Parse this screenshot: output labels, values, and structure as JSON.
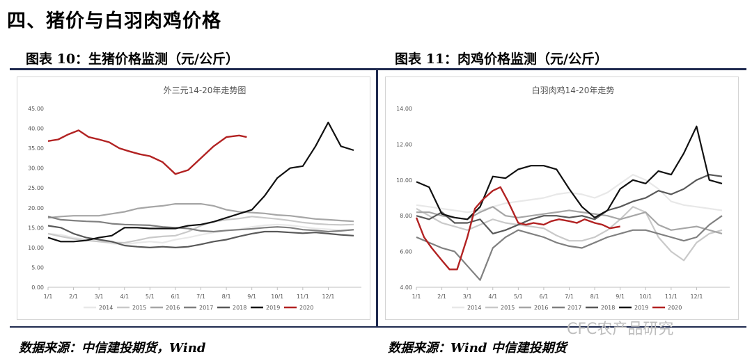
{
  "section_title": "四、猪价与白羽肉鸡价格",
  "figures": {
    "left": {
      "title": "图表 10：生猪价格监测（元/公斤）",
      "source": "数据来源：中信建投期货，Wind"
    },
    "right": {
      "title": "图表 11：肉鸡价格监测（元/公斤）",
      "source": "数据来源：Wind 中信建投期货"
    }
  },
  "watermark": "CFC农产品研究",
  "colors": {
    "y2014": "#e8e8e8",
    "y2015": "#c9c9c9",
    "y2016": "#a6a6a6",
    "y2017": "#808080",
    "y2018": "#595959",
    "y2019": "#111111",
    "y2020": "#b22222"
  },
  "chart_data": [
    {
      "type": "line",
      "title": "外三元14-20年走势图",
      "xlabel": "",
      "ylabel": "",
      "ylim": [
        0,
        45
      ],
      "y_ticks": [
        "0.00",
        "5.00",
        "10.00",
        "15.00",
        "20.00",
        "25.00",
        "30.00",
        "35.00",
        "40.00",
        "45.00"
      ],
      "x_ticks": [
        "1/1",
        "2/1",
        "3/1",
        "4/1",
        "5/1",
        "6/1",
        "7/1",
        "8/1",
        "9/1",
        "10/1",
        "11/1",
        "12/1"
      ],
      "x_domain": [
        0,
        12.3
      ],
      "series": [
        {
          "name": "2014",
          "x": [
            0,
            0.5,
            1,
            1.5,
            2,
            2.5,
            3,
            3.5,
            4,
            4.5,
            5,
            5.5,
            6,
            6.5,
            7,
            7.5,
            8,
            8.5,
            9,
            9.5,
            10,
            10.5,
            11,
            11.5,
            12
          ],
          "y": [
            13.5,
            13.2,
            12.5,
            12.0,
            11.5,
            11.0,
            10.8,
            11.2,
            11.5,
            11.2,
            12.0,
            12.5,
            13.2,
            13.8,
            14.2,
            14.6,
            15.2,
            15.6,
            15.8,
            15.6,
            15.2,
            14.8,
            14.6,
            14.4,
            14.4
          ]
        },
        {
          "name": "2015",
          "x": [
            0,
            0.5,
            1,
            1.5,
            2,
            2.5,
            3,
            3.5,
            4,
            4.5,
            5,
            5.5,
            6,
            6.5,
            7,
            7.5,
            8,
            8.5,
            9,
            9.5,
            10,
            10.5,
            11,
            11.5,
            12
          ],
          "y": [
            13.5,
            12.8,
            12.2,
            11.8,
            11.5,
            11.3,
            11.2,
            11.8,
            12.5,
            12.8,
            13.0,
            14.0,
            15.5,
            16.5,
            17.0,
            17.3,
            17.8,
            17.5,
            17.2,
            16.8,
            16.3,
            16.0,
            15.8,
            15.7,
            15.8
          ]
        },
        {
          "name": "2016",
          "x": [
            0,
            0.5,
            1,
            1.5,
            2,
            2.5,
            3,
            3.5,
            4,
            4.5,
            5,
            5.5,
            6,
            6.5,
            7,
            7.5,
            8,
            8.5,
            9,
            9.5,
            10,
            10.5,
            11,
            11.5,
            12
          ],
          "y": [
            17.5,
            17.8,
            18.0,
            18.0,
            18.0,
            18.5,
            19.0,
            19.8,
            20.2,
            20.5,
            21.0,
            21.0,
            21.0,
            20.5,
            19.5,
            19.0,
            18.8,
            18.6,
            18.2,
            18.0,
            17.6,
            17.2,
            17.0,
            16.8,
            16.6
          ]
        },
        {
          "name": "2017",
          "x": [
            0,
            0.5,
            1,
            1.5,
            2,
            2.5,
            3,
            3.5,
            4,
            4.5,
            5,
            5.5,
            6,
            6.5,
            7,
            7.5,
            8,
            8.5,
            9,
            9.5,
            10,
            10.5,
            11,
            11.5,
            12
          ],
          "y": [
            17.8,
            17.0,
            16.8,
            16.6,
            16.5,
            16.0,
            15.8,
            15.7,
            15.6,
            15.2,
            15.0,
            14.8,
            14.2,
            14.0,
            14.3,
            14.5,
            14.7,
            15.0,
            15.2,
            15.0,
            14.5,
            14.3,
            14.0,
            14.2,
            14.5
          ]
        },
        {
          "name": "2018",
          "x": [
            0,
            0.5,
            1,
            1.5,
            2,
            2.5,
            3,
            3.5,
            4,
            4.5,
            5,
            5.5,
            6,
            6.5,
            7,
            7.5,
            8,
            8.5,
            9,
            9.5,
            10,
            10.5,
            11,
            11.5,
            12
          ],
          "y": [
            15.5,
            15.0,
            13.5,
            12.5,
            12.0,
            11.5,
            10.5,
            10.2,
            10.0,
            10.2,
            10.0,
            10.2,
            10.8,
            11.5,
            12.0,
            12.8,
            13.5,
            14.0,
            14.0,
            13.8,
            13.6,
            13.8,
            13.5,
            13.2,
            13.0
          ]
        },
        {
          "name": "2019",
          "x": [
            0,
            0.5,
            1,
            1.5,
            2,
            2.5,
            3,
            3.5,
            4,
            4.5,
            5,
            5.5,
            6,
            6.5,
            7,
            7.5,
            8,
            8.5,
            9,
            9.5,
            10,
            10.5,
            11,
            11.5,
            12
          ],
          "y": [
            12.5,
            11.5,
            11.5,
            11.8,
            12.5,
            13.0,
            15.0,
            15.0,
            14.8,
            14.8,
            14.8,
            15.5,
            15.8,
            16.5,
            17.5,
            18.5,
            19.5,
            23.0,
            27.5,
            30.0,
            30.5,
            35.5,
            41.5,
            35.5,
            34.5
          ]
        },
        {
          "name": "2020",
          "x": [
            0,
            0.4,
            0.8,
            1.2,
            1.6,
            2.0,
            2.4,
            2.8,
            3.2,
            3.6,
            4.0,
            4.5,
            5.0,
            5.5,
            6.0,
            6.5,
            7.0,
            7.5,
            7.8
          ],
          "y": [
            36.8,
            37.2,
            38.5,
            39.5,
            37.8,
            37.2,
            36.5,
            35.0,
            34.2,
            33.5,
            33.0,
            31.5,
            28.5,
            29.5,
            32.5,
            35.5,
            37.8,
            38.2,
            37.8
          ]
        }
      ]
    },
    {
      "type": "line",
      "title": "白羽肉鸡14-20年走势",
      "xlabel": "",
      "ylabel": "",
      "ylim": [
        4,
        14
      ],
      "y_ticks": [
        "4.00",
        "6.00",
        "8.00",
        "10.00",
        "12.00",
        "14.00"
      ],
      "x_ticks": [
        "1/1",
        "2/1",
        "3/1",
        "4/1",
        "5/1",
        "6/1",
        "7/1",
        "8/1",
        "9/1",
        "10/1",
        "11/1",
        "12/1"
      ],
      "x_domain": [
        0,
        12.3
      ],
      "series": [
        {
          "name": "2014",
          "x": [
            0,
            0.5,
            1,
            1.5,
            2,
            2.5,
            3,
            3.5,
            4,
            4.5,
            5,
            5.5,
            6,
            6.5,
            7,
            7.5,
            8,
            8.5,
            9,
            9.5,
            10,
            10.5,
            11,
            11.5,
            12
          ],
          "y": [
            8.6,
            8.5,
            8.4,
            8.3,
            8.2,
            8.3,
            8.5,
            8.7,
            8.8,
            8.9,
            9.0,
            9.2,
            9.3,
            9.2,
            9.0,
            9.3,
            9.8,
            10.3,
            10.0,
            9.5,
            8.8,
            8.6,
            8.5,
            8.4,
            8.3
          ]
        },
        {
          "name": "2015",
          "x": [
            0,
            0.5,
            1,
            1.5,
            2,
            2.5,
            3,
            3.5,
            4,
            4.5,
            5,
            5.5,
            6,
            6.5,
            7,
            7.5,
            8,
            8.5,
            9,
            9.5,
            10,
            10.5,
            11,
            11.5,
            12
          ],
          "y": [
            8.4,
            8.0,
            7.6,
            7.4,
            7.2,
            7.5,
            7.8,
            7.6,
            7.5,
            7.4,
            7.3,
            6.9,
            6.6,
            6.6,
            6.8,
            7.2,
            7.8,
            8.5,
            8.2,
            6.8,
            6.0,
            5.5,
            6.5,
            7.0,
            7.2
          ]
        },
        {
          "name": "2016",
          "x": [
            0,
            0.5,
            1,
            1.5,
            2,
            2.5,
            3,
            3.5,
            4,
            4.5,
            5,
            5.5,
            6,
            6.5,
            7,
            7.5,
            8,
            8.5,
            9,
            9.5,
            10,
            10.5,
            11,
            11.5,
            12
          ],
          "y": [
            8.2,
            8.2,
            8.0,
            7.9,
            7.8,
            8.2,
            8.5,
            8.0,
            7.9,
            8.0,
            8.1,
            8.2,
            8.3,
            8.2,
            8.1,
            8.0,
            7.8,
            8.0,
            8.2,
            7.5,
            7.2,
            7.3,
            7.4,
            7.2,
            7.0
          ]
        },
        {
          "name": "2017",
          "x": [
            0,
            0.5,
            1,
            1.5,
            2,
            2.5,
            3,
            3.5,
            4,
            4.5,
            5,
            5.5,
            6,
            6.5,
            7,
            7.5,
            8,
            8.5,
            9,
            9.5,
            10,
            10.5,
            11,
            11.5,
            12
          ],
          "y": [
            6.8,
            6.5,
            6.2,
            6.0,
            5.2,
            4.4,
            6.2,
            6.8,
            7.2,
            7.0,
            6.8,
            6.5,
            6.3,
            6.2,
            6.5,
            6.8,
            7.0,
            7.2,
            7.2,
            7.0,
            6.8,
            6.6,
            6.8,
            7.5,
            8.0
          ]
        },
        {
          "name": "2018",
          "x": [
            0,
            0.5,
            1,
            1.5,
            2,
            2.5,
            3,
            3.5,
            4,
            4.5,
            5,
            5.5,
            6,
            6.5,
            7,
            7.5,
            8,
            8.5,
            9,
            9.5,
            10,
            10.5,
            11,
            11.5,
            12
          ],
          "y": [
            8.0,
            7.8,
            8.2,
            7.6,
            7.6,
            7.8,
            7.0,
            7.2,
            7.5,
            7.8,
            8.0,
            8.0,
            7.9,
            8.0,
            7.8,
            8.3,
            8.5,
            8.8,
            9.0,
            9.4,
            9.2,
            9.5,
            10.0,
            10.3,
            10.2
          ]
        },
        {
          "name": "2019",
          "x": [
            0,
            0.5,
            1,
            1.5,
            2,
            2.5,
            3,
            3.5,
            4,
            4.5,
            5,
            5.5,
            6,
            6.5,
            7,
            7.5,
            8,
            8.5,
            9,
            9.5,
            10,
            10.5,
            11,
            11.5,
            12
          ],
          "y": [
            9.9,
            9.6,
            8.1,
            7.9,
            7.8,
            8.5,
            10.2,
            10.1,
            10.6,
            10.8,
            10.8,
            10.6,
            9.5,
            8.5,
            7.9,
            8.3,
            9.5,
            10.0,
            9.8,
            10.5,
            10.3,
            11.5,
            13.0,
            10.0,
            9.8
          ]
        },
        {
          "name": "2020",
          "x": [
            0,
            0.3,
            0.6,
            1.0,
            1.3,
            1.6,
            2.0,
            2.3,
            2.6,
            3.0,
            3.3,
            3.6,
            4.0,
            4.3,
            4.6,
            5.0,
            5.3,
            5.6,
            6.0,
            6.3,
            6.6,
            7.0,
            7.3,
            7.6,
            8.0
          ],
          "y": [
            7.9,
            6.8,
            6.2,
            5.5,
            5.0,
            5.0,
            6.8,
            8.4,
            8.9,
            9.4,
            9.6,
            8.8,
            7.6,
            7.5,
            7.6,
            7.5,
            7.7,
            7.8,
            7.7,
            7.6,
            7.8,
            7.6,
            7.5,
            7.3,
            7.4
          ]
        }
      ]
    }
  ]
}
